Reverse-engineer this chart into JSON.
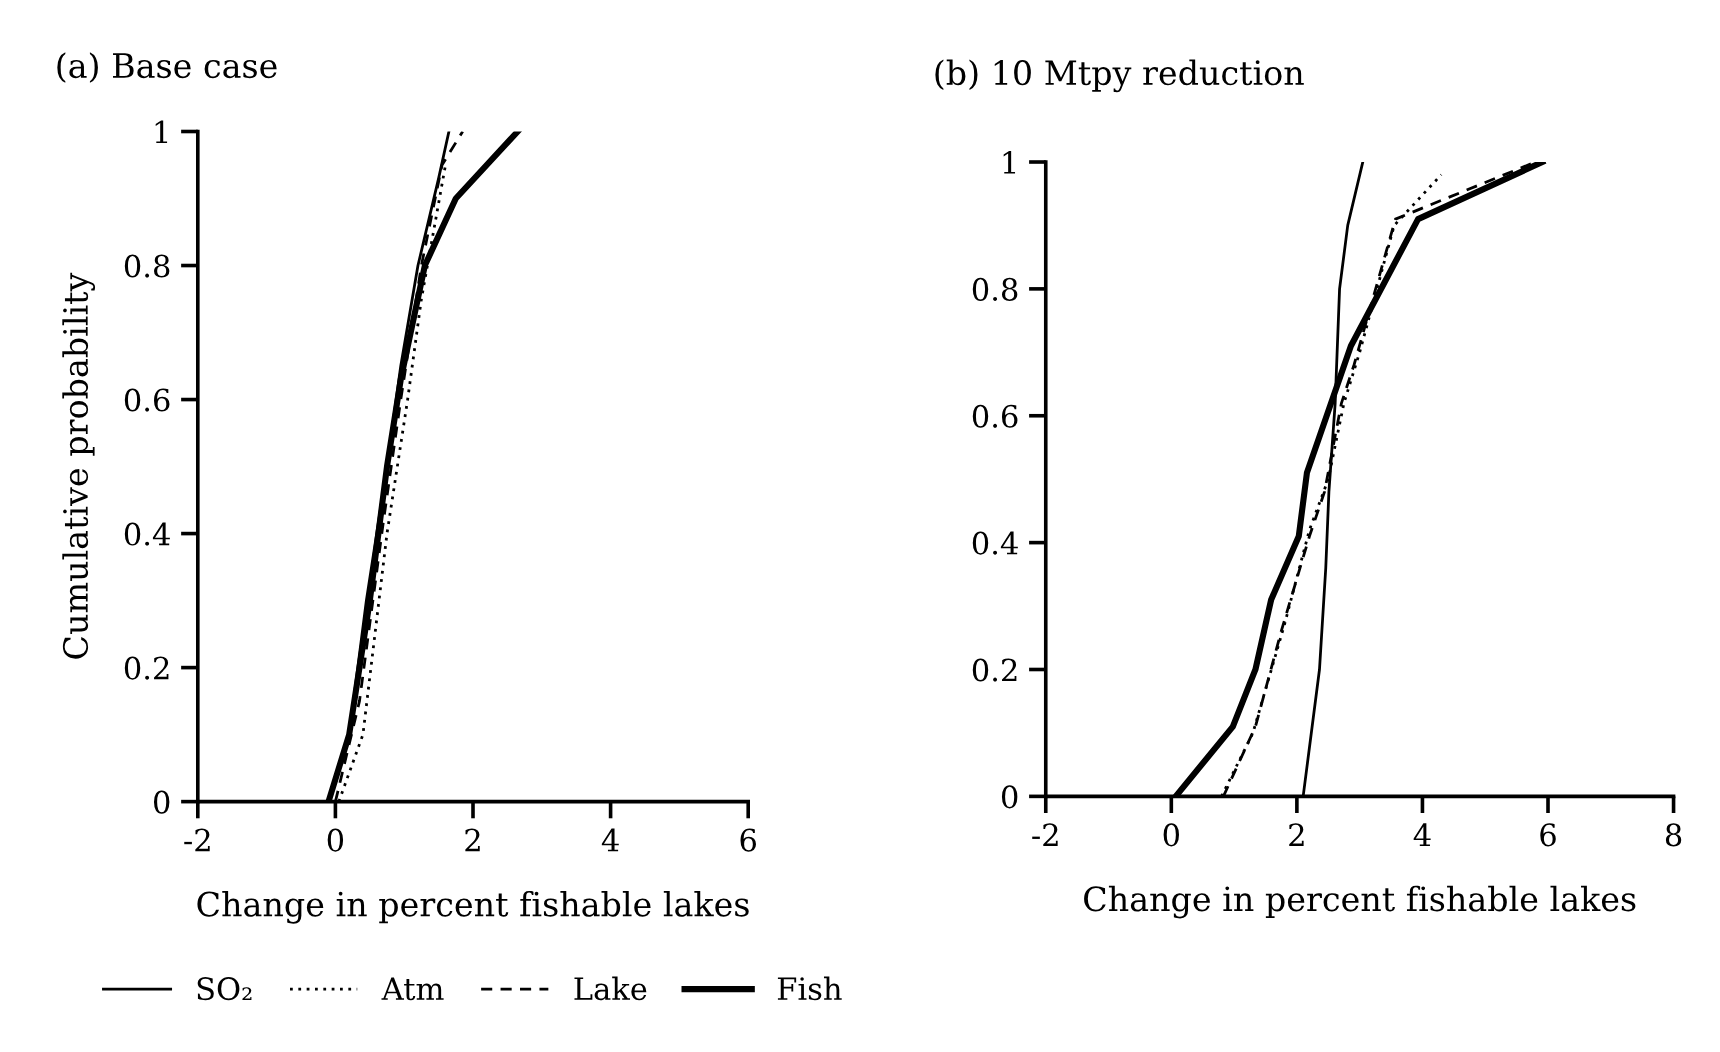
{
  "chart_data": [
    {
      "type": "line",
      "title": "(a) Base case",
      "xlabel": "Change in percent fishable lakes",
      "ylabel": "Cumulative probability",
      "xlim": [
        -2,
        6
      ],
      "xticks": [
        -2,
        0,
        2,
        4,
        6
      ],
      "ylim": [
        0,
        1
      ],
      "yticks": [
        0,
        0.2,
        0.4,
        0.6,
        0.8,
        1
      ],
      "grid": false,
      "legend": "bottom",
      "marker": "none",
      "series": [
        {
          "name": "SO₂",
          "color": "#000000",
          "line_style": "solid",
          "x": [
            -0.1,
            0.2,
            0.45,
            0.75,
            0.95,
            1.2,
            1.5,
            1.65
          ],
          "values": [
            0,
            0.1,
            0.3,
            0.5,
            0.65,
            0.8,
            0.93,
            1.0
          ]
        },
        {
          "name": "Atm",
          "color": "#000000",
          "line_style": "dotted",
          "x": [
            0.05,
            0.4,
            0.75,
            1.05,
            1.25,
            1.6
          ],
          "values": [
            0,
            0.1,
            0.4,
            0.6,
            0.75,
            0.95
          ]
        },
        {
          "name": "Lake",
          "color": "#000000",
          "line_style": "dashed",
          "x": [
            0,
            0.35,
            0.7,
            0.95,
            1.25,
            1.55,
            1.85
          ],
          "values": [
            0,
            0.15,
            0.42,
            0.6,
            0.8,
            0.95,
            1.0
          ]
        },
        {
          "name": "Fish",
          "color": "#000000",
          "line_style": "solid",
          "x": [
            -0.1,
            0.2,
            0.5,
            0.75,
            0.95,
            1.3,
            1.75,
            2.65
          ],
          "values": [
            0,
            0.1,
            0.3,
            0.5,
            0.63,
            0.8,
            0.9,
            1.0
          ]
        }
      ]
    },
    {
      "type": "line",
      "title": "(b) 10 Mtpy reduction",
      "xlabel": "Change in percent fishable lakes",
      "xlim": [
        -2,
        8
      ],
      "xticks": [
        -2,
        0,
        2,
        4,
        6,
        8
      ],
      "ylim": [
        0,
        1
      ],
      "yticks": [
        0,
        0.2,
        0.4,
        0.6,
        0.8,
        1
      ],
      "grid": false,
      "marker": "none",
      "series": [
        {
          "color": "#000000",
          "line_style": "solid",
          "x": [
            2.1,
            2.36,
            2.46,
            2.51,
            2.61,
            2.68,
            2.81,
            3.05
          ],
          "values": [
            0,
            0.2,
            0.36,
            0.48,
            0.62,
            0.8,
            0.9,
            1.0
          ]
        },
        {
          "color": "#000000",
          "line_style": "dotted",
          "x": [
            0.8,
            1.3,
            1.8,
            2.2,
            2.5,
            2.75,
            3.0,
            3.55,
            4.3
          ],
          "values": [
            0,
            0.1,
            0.27,
            0.42,
            0.5,
            0.62,
            0.7,
            0.9,
            0.98
          ]
        },
        {
          "color": "#000000",
          "line_style": "dashed",
          "x": [
            0.83,
            1.34,
            1.75,
            2.2,
            2.44,
            2.71,
            2.91,
            3.57,
            5.8
          ],
          "values": [
            0,
            0.11,
            0.26,
            0.41,
            0.48,
            0.62,
            0.68,
            0.91,
            1.0
          ]
        },
        {
          "color": "#000000",
          "line_style": "solid",
          "x": [
            0.07,
            0.98,
            1.34,
            1.59,
            2.03,
            2.16,
            2.86,
            3.93,
            5.91
          ],
          "values": [
            0,
            0.11,
            0.2,
            0.31,
            0.41,
            0.51,
            0.71,
            0.91,
            1.0
          ]
        }
      ]
    }
  ]
}
